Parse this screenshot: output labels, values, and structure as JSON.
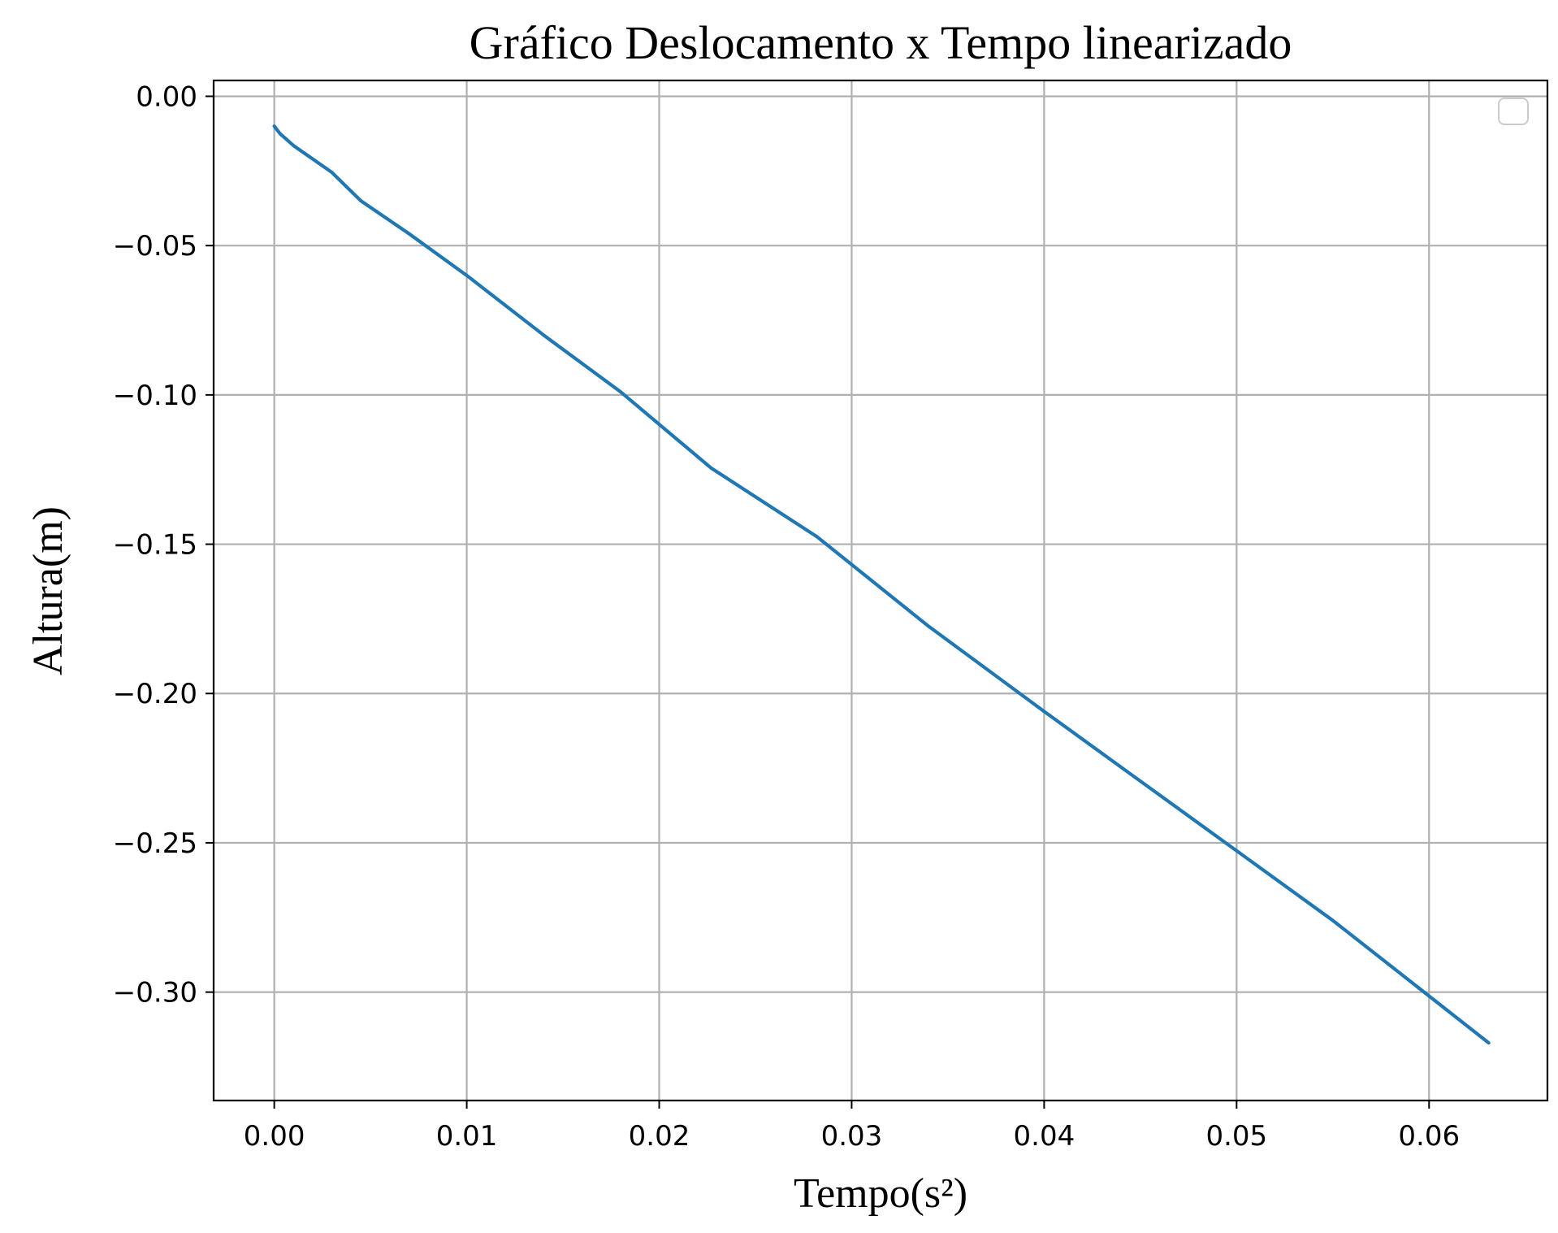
{
  "chart_data": {
    "type": "line",
    "title": "Gráfico Deslocamento x Tempo linearizado",
    "xlabel": "Tempo(s²)",
    "ylabel": "Altura(m)",
    "xlim": [
      -0.00315,
      0.06615
    ],
    "ylim": [
      -0.3363,
      0.0053
    ],
    "xticks": [
      0.0,
      0.01,
      0.02,
      0.03,
      0.04,
      0.05,
      0.06
    ],
    "xtick_labels": [
      "0.00",
      "0.01",
      "0.02",
      "0.03",
      "0.04",
      "0.05",
      "0.06"
    ],
    "yticks": [
      0.0,
      -0.05,
      -0.1,
      -0.15,
      -0.2,
      -0.25,
      -0.3
    ],
    "ytick_labels": [
      "0.00",
      "−0.05",
      "−0.10",
      "−0.15",
      "−0.20",
      "−0.25",
      "−0.30"
    ],
    "grid": true,
    "legend": "top-right, empty",
    "series": [
      {
        "color": "#1f77b4",
        "x": [
          0.0,
          0.0003,
          0.001,
          0.002,
          0.003,
          0.0045,
          0.007,
          0.01,
          0.014,
          0.018,
          0.0227,
          0.0282,
          0.034,
          0.04,
          0.046,
          0.055,
          0.0631
        ],
        "y": [
          -0.01,
          -0.0125,
          -0.0165,
          -0.021,
          -0.0255,
          -0.035,
          -0.046,
          -0.06,
          -0.08,
          -0.099,
          -0.1245,
          -0.1475,
          -0.1775,
          -0.206,
          -0.234,
          -0.276,
          -0.317
        ]
      }
    ]
  }
}
